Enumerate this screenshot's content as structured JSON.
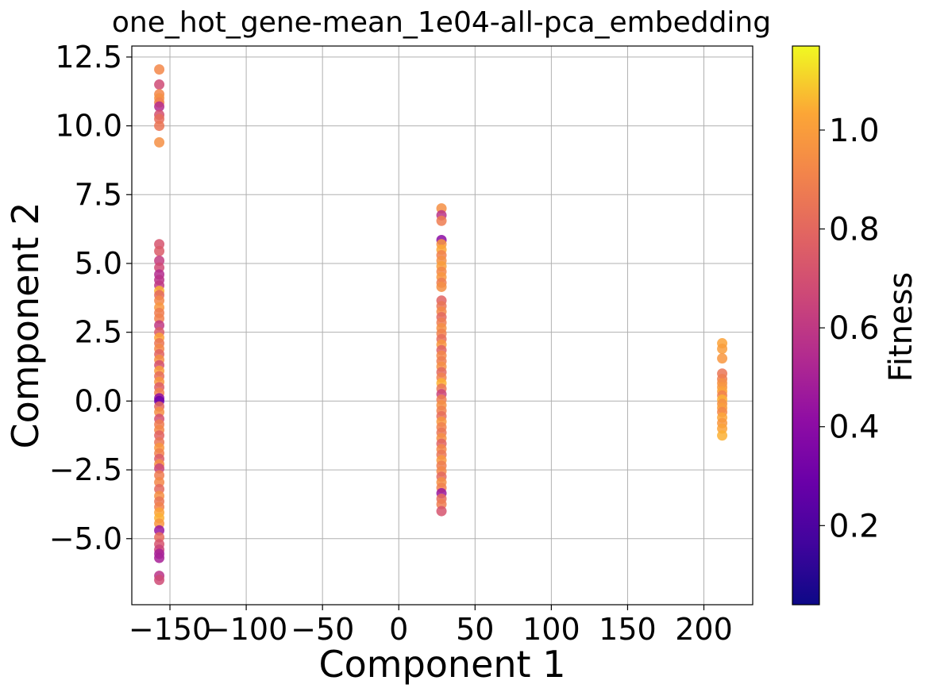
{
  "chart_data": {
    "type": "scatter",
    "title": "one_hot_gene-mean_1e04-all-pca_embedding",
    "xlabel": "Component 1",
    "ylabel": "Component 2",
    "xlim": [
      -175,
      232
    ],
    "ylim": [
      -7.4,
      12.9
    ],
    "xticks": [
      -150,
      -100,
      -50,
      0,
      50,
      100,
      150,
      200
    ],
    "xtick_labels": [
      "−150",
      "−100",
      "−50",
      "0",
      "50",
      "100",
      "150",
      "200"
    ],
    "yticks": [
      -5.0,
      -2.5,
      0.0,
      2.5,
      5.0,
      7.5,
      10.0,
      12.5
    ],
    "ytick_labels": [
      "−5.0",
      "−2.5",
      "0.0",
      "2.5",
      "5.0",
      "7.5",
      "10.0",
      "12.5"
    ],
    "grid": true,
    "colormap": "plasma",
    "colorbar": {
      "label": "Fitness",
      "range": [
        0.04,
        1.17
      ],
      "ticks": [
        0.2,
        0.4,
        0.6,
        0.8,
        1.0
      ],
      "tick_labels": [
        "0.2",
        "0.4",
        "0.6",
        "0.8",
        "1.0"
      ]
    },
    "clusters": [
      {
        "x": -157,
        "points": [
          [
            12.05,
            0.92
          ],
          [
            11.5,
            0.68
          ],
          [
            11.15,
            0.92
          ],
          [
            11.0,
            0.95
          ],
          [
            10.85,
            0.9
          ],
          [
            10.7,
            0.55
          ],
          [
            10.4,
            0.7
          ],
          [
            10.25,
            0.82
          ],
          [
            10.0,
            0.85
          ],
          [
            9.4,
            0.95
          ],
          [
            5.7,
            0.72
          ],
          [
            5.45,
            0.75
          ],
          [
            5.1,
            0.62
          ],
          [
            4.85,
            0.68
          ],
          [
            4.6,
            0.55
          ],
          [
            4.4,
            0.58
          ],
          [
            4.2,
            0.6
          ],
          [
            4.0,
            1.05
          ],
          [
            3.85,
            0.8
          ],
          [
            3.65,
            0.92
          ],
          [
            3.4,
            0.98
          ],
          [
            3.2,
            0.88
          ],
          [
            3.0,
            0.9
          ],
          [
            2.75,
            0.6
          ],
          [
            2.5,
            0.75
          ],
          [
            2.3,
            1.02
          ],
          [
            2.1,
            0.85
          ],
          [
            1.9,
            0.92
          ],
          [
            1.7,
            0.78
          ],
          [
            1.5,
            0.95
          ],
          [
            1.3,
            0.7
          ],
          [
            1.1,
            1.0
          ],
          [
            0.9,
            0.82
          ],
          [
            0.7,
            0.98
          ],
          [
            0.5,
            0.76
          ],
          [
            0.3,
            0.9
          ],
          [
            0.1,
            0.42
          ],
          [
            0.0,
            0.3
          ],
          [
            -0.2,
            0.8
          ],
          [
            -0.4,
            0.95
          ],
          [
            -0.65,
            0.7
          ],
          [
            -0.85,
            0.88
          ],
          [
            -1.05,
            0.92
          ],
          [
            -1.25,
            0.78
          ],
          [
            -1.5,
            0.85
          ],
          [
            -1.7,
            0.98
          ],
          [
            -1.9,
            0.9
          ],
          [
            -2.1,
            0.75
          ],
          [
            -2.3,
            0.95
          ],
          [
            -2.45,
            0.65
          ],
          [
            -2.7,
            0.88
          ],
          [
            -2.95,
            0.92
          ],
          [
            -3.2,
            0.8
          ],
          [
            -3.45,
            0.95
          ],
          [
            -3.65,
            0.85
          ],
          [
            -3.85,
            0.9
          ],
          [
            -4.05,
            1.02
          ],
          [
            -4.25,
            1.05
          ],
          [
            -4.45,
            0.98
          ],
          [
            -4.7,
            0.45
          ],
          [
            -4.95,
            0.82
          ],
          [
            -5.2,
            0.72
          ],
          [
            -5.4,
            0.65
          ],
          [
            -5.55,
            0.5
          ],
          [
            -5.7,
            0.5
          ],
          [
            -6.35,
            0.58
          ],
          [
            -6.5,
            0.68
          ]
        ]
      },
      {
        "x": 28,
        "points": [
          [
            7.0,
            0.95
          ],
          [
            6.75,
            0.58
          ],
          [
            6.55,
            0.88
          ],
          [
            5.85,
            0.4
          ],
          [
            5.7,
            0.98
          ],
          [
            5.5,
            1.03
          ],
          [
            5.3,
            0.9
          ],
          [
            5.1,
            0.95
          ],
          [
            4.9,
            1.0
          ],
          [
            4.7,
            0.92
          ],
          [
            4.5,
            0.98
          ],
          [
            4.3,
            0.88
          ],
          [
            4.15,
            0.95
          ],
          [
            3.65,
            0.78
          ],
          [
            3.45,
            0.85
          ],
          [
            3.25,
            0.92
          ],
          [
            3.05,
            0.8
          ],
          [
            2.85,
            0.88
          ],
          [
            2.65,
            0.95
          ],
          [
            2.45,
            0.9
          ],
          [
            2.25,
            0.82
          ],
          [
            2.05,
            0.98
          ],
          [
            1.85,
            0.78
          ],
          [
            1.65,
            0.92
          ],
          [
            1.45,
            0.88
          ],
          [
            1.25,
            0.95
          ],
          [
            1.05,
            0.8
          ],
          [
            0.85,
            0.9
          ],
          [
            0.65,
            1.05
          ],
          [
            0.45,
            0.85
          ],
          [
            0.25,
            0.65
          ],
          [
            0.05,
            0.88
          ],
          [
            -0.15,
            0.95
          ],
          [
            -0.35,
            0.9
          ],
          [
            -0.55,
            0.82
          ],
          [
            -0.75,
            0.98
          ],
          [
            -0.95,
            0.9
          ],
          [
            -1.15,
            0.85
          ],
          [
            -1.35,
            0.95
          ],
          [
            -1.55,
            0.78
          ],
          [
            -1.75,
            0.92
          ],
          [
            -1.95,
            0.85
          ],
          [
            -2.15,
            0.98
          ],
          [
            -2.35,
            0.88
          ],
          [
            -2.55,
            0.92
          ],
          [
            -2.75,
            0.8
          ],
          [
            -2.95,
            0.95
          ],
          [
            -3.15,
            0.9
          ],
          [
            -3.35,
            0.45
          ],
          [
            -3.55,
            0.82
          ],
          [
            -3.75,
            0.88
          ],
          [
            -4.0,
            0.72
          ]
        ]
      },
      {
        "x": 212,
        "points": [
          [
            2.1,
            1.02
          ],
          [
            1.9,
            1.0
          ],
          [
            1.55,
            0.98
          ],
          [
            1.0,
            0.85
          ],
          [
            0.8,
            0.88
          ],
          [
            0.65,
            0.95
          ],
          [
            0.5,
            0.98
          ],
          [
            0.35,
            1.02
          ],
          [
            0.2,
            0.9
          ],
          [
            0.05,
            1.05
          ],
          [
            -0.1,
            0.95
          ],
          [
            -0.25,
            1.0
          ],
          [
            -0.4,
            0.92
          ],
          [
            -0.6,
            1.03
          ],
          [
            -0.8,
            0.98
          ],
          [
            -1.0,
            1.02
          ],
          [
            -1.25,
            1.05
          ]
        ]
      }
    ]
  }
}
